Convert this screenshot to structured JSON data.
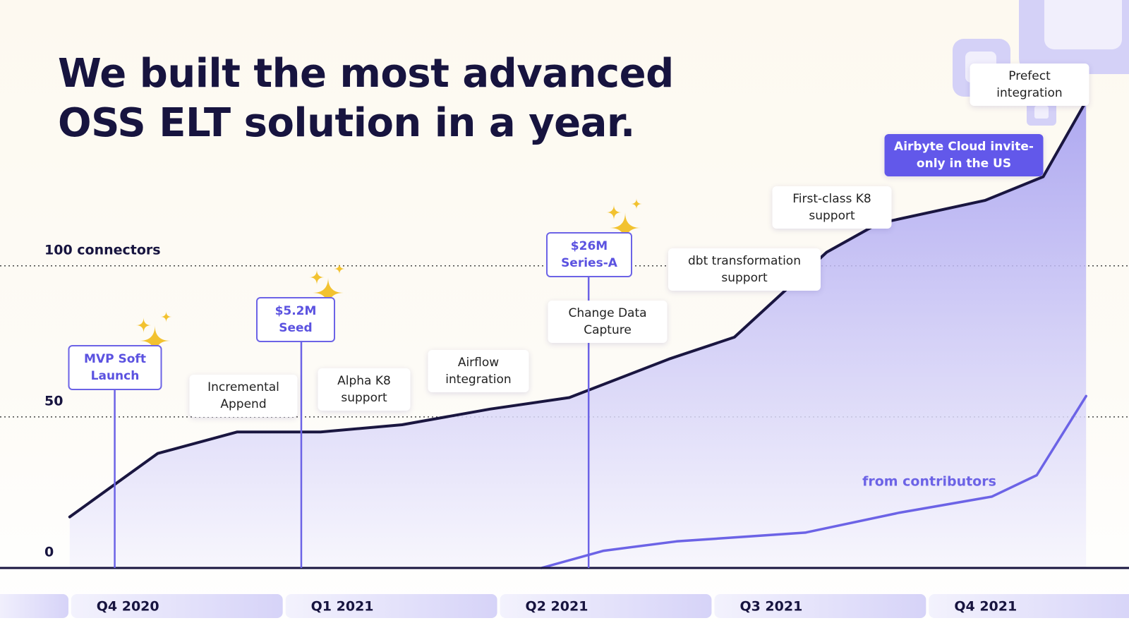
{
  "chart_data": {
    "type": "area",
    "title": "We built the most advanced OSS ELT solution in a year.",
    "ylim": [
      0,
      188
    ],
    "yticks": [
      0,
      50,
      {
        "value": 100,
        "label": "100 connectors"
      }
    ],
    "xlim": [
      -0.325,
      4.94
    ],
    "xticks": [
      {
        "value": 0,
        "label": "Q4 2020"
      },
      {
        "value": 1,
        "label": "Q1 2021"
      },
      {
        "value": 2,
        "label": "Q2 2021"
      },
      {
        "value": 3,
        "label": "Q3 2021"
      },
      {
        "value": 4,
        "label": "Q4 2021"
      }
    ],
    "grid": true,
    "series": [
      {
        "color": "#1a1640",
        "x": [
          0,
          0.41,
          0.78,
          1.17,
          1.55,
          1.96,
          2.33,
          2.8,
          3.1,
          3.33,
          3.53,
          3.77,
          4.27,
          4.54,
          4.74
        ],
        "values": [
          16.9,
          37.9,
          45,
          45,
          47.4,
          52.6,
          56.4,
          69.3,
          76.4,
          91.4,
          104.5,
          114,
          121.7,
          129.5,
          154.5
        ]
      },
      {
        "name": "from contributors",
        "color": "#6c63e6",
        "x": [
          2.2,
          2.49,
          2.83,
          3.43,
          3.87,
          4.3,
          4.51,
          4.74
        ],
        "values": [
          0,
          5.7,
          8.8,
          11.7,
          18.3,
          23.6,
          30.7,
          56.9
        ]
      }
    ],
    "milestones": [
      {
        "text": "MVP Soft Launch",
        "x": 0.21
      },
      {
        "text": "$5.2M Seed",
        "x": 1.08
      },
      {
        "text": "$26M Series-A",
        "x": 2.42
      }
    ],
    "annotations": [
      "Incremental Append",
      "Alpha K8 support",
      "Airflow integration",
      "Change Data Capture",
      "dbt transformation support",
      "First-class K8 support",
      "Airbyte Cloud invite-only in the US",
      "Prefect integration"
    ]
  }
}
